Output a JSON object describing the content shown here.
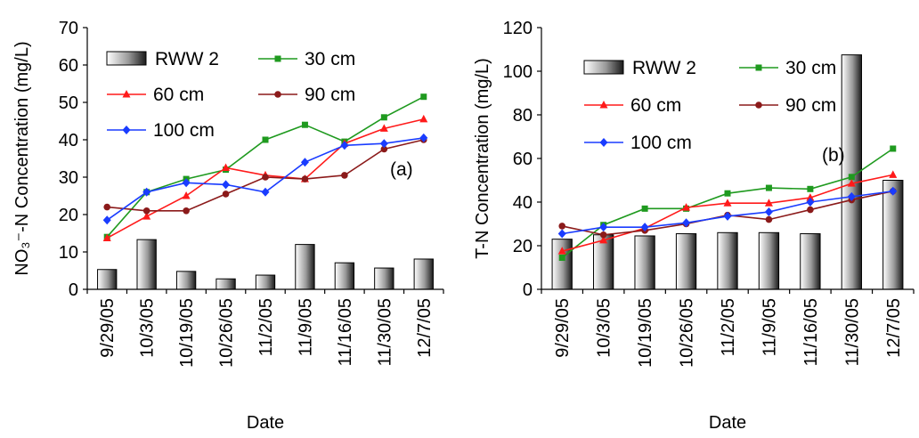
{
  "chart_data": [
    {
      "type": "bar+line",
      "panel_label": "(a)",
      "xlabel": "Date",
      "ylabel": "NO₃⁻-N Concentration (mg/L)",
      "ylim": [
        0,
        70
      ],
      "yticks": [
        0,
        10,
        20,
        30,
        40,
        50,
        60,
        70
      ],
      "categories": [
        "9/29/05",
        "10/3/05",
        "10/19/05",
        "10/26/05",
        "11/2/05",
        "11/9/05",
        "11/16/05",
        "11/30/05",
        "12/7/05"
      ],
      "legend_placement": "top-left",
      "grid": false,
      "bars": {
        "name": "RWW 2",
        "values": [
          5.3,
          13.3,
          4.8,
          2.8,
          3.8,
          12,
          7.1,
          5.7,
          8.1
        ]
      },
      "series": [
        {
          "name": "30 cm",
          "color": "#1f9a1f",
          "marker": "square",
          "values": [
            14,
            26,
            29.5,
            32,
            40,
            44,
            39.5,
            46,
            51.5
          ]
        },
        {
          "name": "60 cm",
          "color": "#ff1a1a",
          "marker": "triangle",
          "values": [
            13.7,
            19.5,
            25,
            32.5,
            30.5,
            29.5,
            39,
            43,
            45.5
          ]
        },
        {
          "name": "90 cm",
          "color": "#8b1a1a",
          "marker": "circle",
          "values": [
            22,
            21,
            21,
            25.5,
            30,
            29.5,
            30.5,
            37.5,
            40
          ]
        },
        {
          "name": "100 cm",
          "color": "#1a3cff",
          "marker": "diamond",
          "values": [
            18.5,
            26,
            28.5,
            28,
            26,
            34,
            38.5,
            39,
            40.5
          ]
        }
      ]
    },
    {
      "type": "bar+line",
      "panel_label": "(b)",
      "xlabel": "Date",
      "ylabel": "T-N Concentration (mg/L)",
      "ylim": [
        0,
        120
      ],
      "yticks": [
        0,
        20,
        40,
        60,
        80,
        100,
        120
      ],
      "categories": [
        "9/29/05",
        "10/3/05",
        "10/19/05",
        "10/26/05",
        "11/2/05",
        "11/9/05",
        "11/16/05",
        "11/30/05",
        "12/7/05"
      ],
      "legend_placement": "top-left",
      "grid": false,
      "bars": {
        "name": "RWW 2",
        "values": [
          23,
          25,
          24.5,
          25.5,
          26,
          26,
          25.5,
          107.5,
          50
        ]
      },
      "series": [
        {
          "name": "30 cm",
          "color": "#1f9a1f",
          "marker": "square",
          "values": [
            14.5,
            29.5,
            37,
            37,
            44,
            46.5,
            46,
            51.5,
            64.5
          ]
        },
        {
          "name": "60 cm",
          "color": "#ff1a1a",
          "marker": "triangle",
          "values": [
            17.5,
            22.5,
            28,
            37.5,
            39.5,
            39.5,
            42,
            48.5,
            52.5
          ]
        },
        {
          "name": "90 cm",
          "color": "#8b1a1a",
          "marker": "circle",
          "values": [
            29,
            25,
            27,
            30,
            34,
            32,
            36.5,
            41,
            45
          ]
        },
        {
          "name": "100 cm",
          "color": "#1a3cff",
          "marker": "diamond",
          "values": [
            25.5,
            28.5,
            28.5,
            30.5,
            33.5,
            35.5,
            40,
            42.5,
            45
          ]
        }
      ]
    }
  ]
}
